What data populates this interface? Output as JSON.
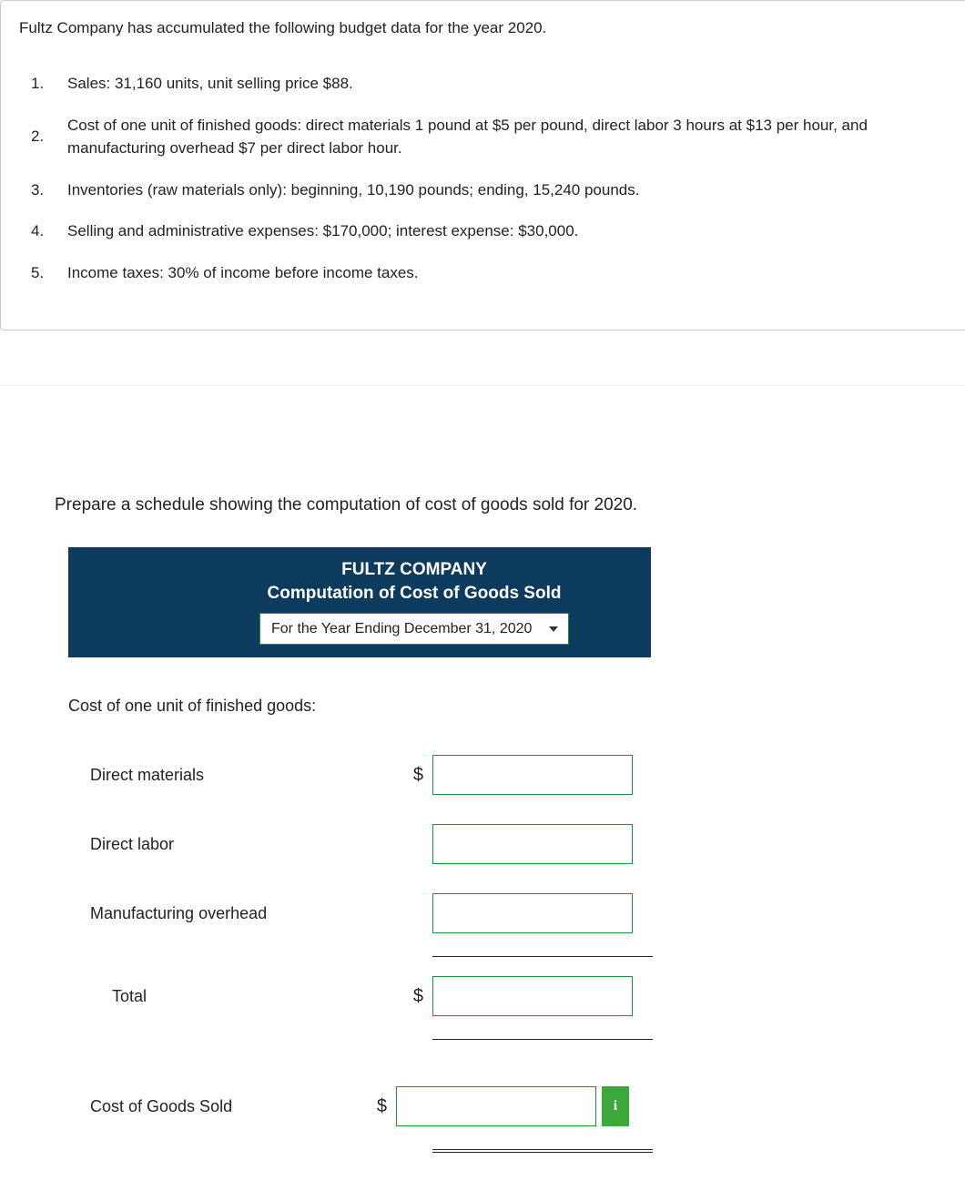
{
  "problem": {
    "intro": "Fultz Company has accumulated the following budget data for the year 2020.",
    "items": [
      {
        "num": "1.",
        "text": "Sales: 31,160 units, unit selling price $88."
      },
      {
        "num": "2.",
        "text": "Cost of one unit of finished goods: direct materials 1 pound at $5 per pound, direct labor 3 hours at $13 per hour, and manufacturing overhead $7 per direct labor hour."
      },
      {
        "num": "3.",
        "text": "Inventories (raw materials only): beginning, 10,190 pounds; ending, 15,240 pounds."
      },
      {
        "num": "4.",
        "text": "Selling and administrative expenses: $170,000; interest expense: $30,000."
      },
      {
        "num": "5.",
        "text": "Income taxes: 30% of income before income taxes."
      }
    ]
  },
  "instruction": "Prepare a schedule showing the computation of cost of goods sold for 2020.",
  "schedule": {
    "company": "FULTZ COMPANY",
    "title": "Computation of Cost of Goods Sold",
    "period": "For the Year Ending December 31, 2020",
    "section_label": "Cost of one unit of finished goods:",
    "rows": {
      "dm": {
        "label": "Direct materials",
        "currency": "$",
        "value": ""
      },
      "dl": {
        "label": "Direct labor",
        "currency": "",
        "value": ""
      },
      "moh": {
        "label": "Manufacturing overhead",
        "currency": "",
        "value": ""
      },
      "total": {
        "label": "Total",
        "currency": "$",
        "value": ""
      },
      "cogs": {
        "label": "Cost of Goods Sold",
        "currency": "$",
        "value": ""
      }
    },
    "info_badge": "i"
  },
  "colors": {
    "header_bg": "#0c3b5e",
    "input_border": "#1a8f3c",
    "info_badge_bg": "#3aa93a"
  }
}
